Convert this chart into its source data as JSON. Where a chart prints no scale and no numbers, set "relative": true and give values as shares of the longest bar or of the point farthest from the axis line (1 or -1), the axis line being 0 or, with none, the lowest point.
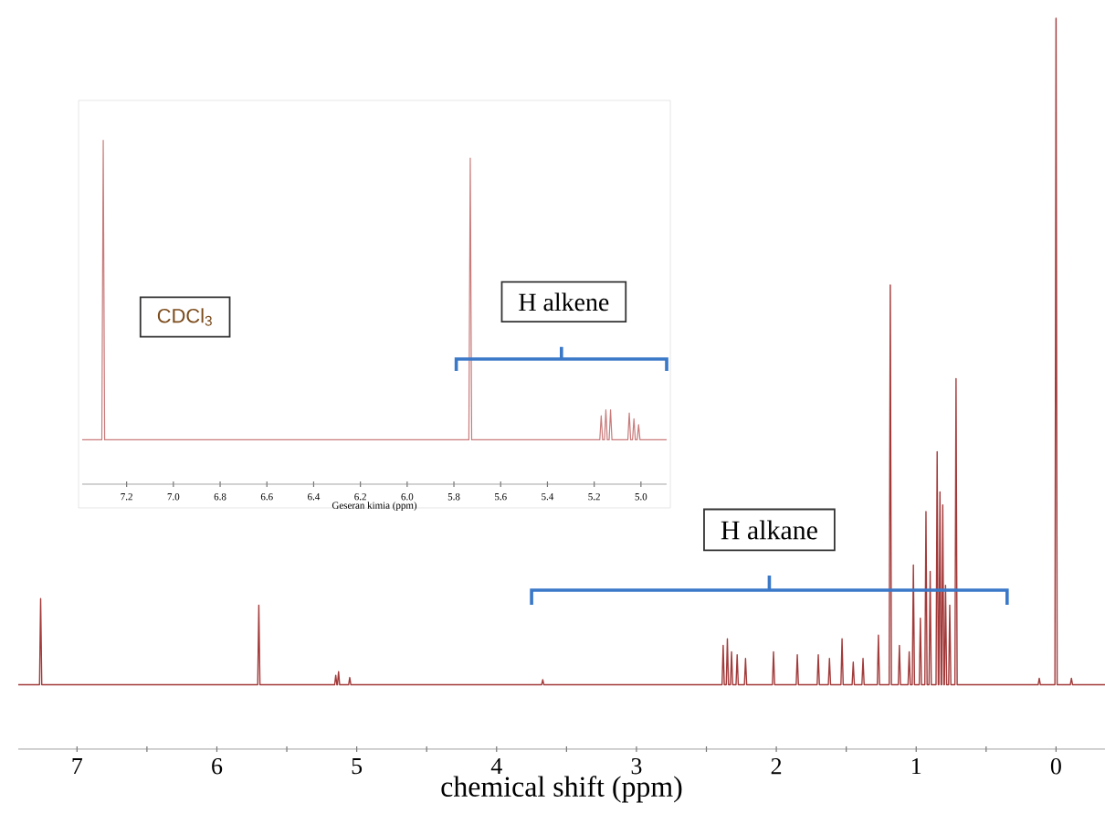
{
  "chart_data": [
    {
      "type": "line",
      "xlabel": "chemical shift (ppm)",
      "relative": true,
      "color": "#a33a3a",
      "xlim": [
        7.42,
        -0.35
      ],
      "xticks": [
        7,
        6,
        5,
        4,
        3,
        2,
        1,
        0
      ],
      "x": [
        7.42,
        7.268,
        7.26,
        7.252,
        5.708,
        5.7,
        5.692,
        5.158,
        5.15,
        5.142,
        5.138,
        5.13,
        5.122,
        5.058,
        5.05,
        5.042,
        3.678,
        3.67,
        3.662,
        2.388,
        2.38,
        2.372,
        2.358,
        2.35,
        2.342,
        2.328,
        2.32,
        2.312,
        2.288,
        2.28,
        2.272,
        2.228,
        2.22,
        2.212,
        2.028,
        2.02,
        2.012,
        1.858,
        1.85,
        1.842,
        1.708,
        1.7,
        1.692,
        1.628,
        1.62,
        1.612,
        1.538,
        1.53,
        1.522,
        1.458,
        1.45,
        1.442,
        1.388,
        1.38,
        1.372,
        1.278,
        1.27,
        1.262,
        1.193,
        1.185,
        1.177,
        1.128,
        1.12,
        1.112,
        1.058,
        1.05,
        1.042,
        1.028,
        1.02,
        1.012,
        0.978,
        0.97,
        0.962,
        0.938,
        0.93,
        0.922,
        0.908,
        0.9,
        0.892,
        0.858,
        0.85,
        0.842,
        0.838,
        0.83,
        0.822,
        0.818,
        0.81,
        0.802,
        0.798,
        0.79,
        0.782,
        0.768,
        0.76,
        0.752,
        0.723,
        0.715,
        0.707,
        0.128,
        0.12,
        0.112,
        0.008,
        0.0,
        -0.008,
        -0.102,
        -0.11,
        -0.118,
        -0.35
      ],
      "values": [
        0.088,
        0.088,
        0.206,
        0.088,
        0.088,
        0.197,
        0.088,
        0.088,
        0.101,
        0.088,
        0.088,
        0.106,
        0.088,
        0.088,
        0.098,
        0.088,
        0.088,
        0.095,
        0.088,
        0.088,
        0.142,
        0.088,
        0.088,
        0.151,
        0.088,
        0.088,
        0.133,
        0.088,
        0.088,
        0.129,
        0.088,
        0.088,
        0.124,
        0.088,
        0.088,
        0.133,
        0.088,
        0.088,
        0.129,
        0.088,
        0.088,
        0.129,
        0.088,
        0.088,
        0.124,
        0.088,
        0.088,
        0.151,
        0.088,
        0.088,
        0.119,
        0.088,
        0.088,
        0.124,
        0.088,
        0.088,
        0.156,
        0.088,
        0.088,
        0.635,
        0.088,
        0.088,
        0.142,
        0.088,
        0.088,
        0.133,
        0.088,
        0.088,
        0.252,
        0.088,
        0.088,
        0.179,
        0.088,
        0.088,
        0.325,
        0.088,
        0.088,
        0.243,
        0.088,
        0.088,
        0.407,
        0.088,
        0.088,
        0.352,
        0.088,
        0.088,
        0.334,
        0.088,
        0.088,
        0.224,
        0.088,
        0.088,
        0.197,
        0.088,
        0.088,
        0.507,
        0.088,
        0.088,
        0.097,
        0.088,
        0.088,
        1,
        0.088,
        0.088,
        0.097,
        0.088,
        0.088
      ],
      "annotations": [
        "H alkane"
      ]
    },
    {
      "type": "line",
      "xlabel": "Geseran kimia (ppm)",
      "relative": true,
      "color": "#c97b7b",
      "xlim": [
        7.39,
        4.89
      ],
      "xticks": [
        {
          "value": 7.2,
          "label": "7.2"
        },
        {
          "value": 7.0,
          "label": "7.0"
        },
        {
          "value": 6.8,
          "label": "6.8"
        },
        {
          "value": 6.6,
          "label": "6.6"
        },
        {
          "value": 6.4,
          "label": "6.4"
        },
        {
          "value": 6.2,
          "label": "6.2"
        },
        {
          "value": 6.0,
          "label": "6.0"
        },
        {
          "value": 5.8,
          "label": "5.8"
        },
        {
          "value": 5.6,
          "label": "5.6"
        },
        {
          "value": 5.4,
          "label": "5.4"
        },
        {
          "value": 5.2,
          "label": "5.2"
        },
        {
          "value": 5.0,
          "label": "5.0"
        }
      ],
      "x": [
        7.39,
        7.306,
        7.3,
        7.294,
        5.736,
        5.73,
        5.724,
        5.176,
        5.17,
        5.164,
        5.156,
        5.15,
        5.144,
        5.136,
        5.13,
        5.124,
        5.056,
        5.05,
        5.044,
        5.036,
        5.03,
        5.024,
        5.016,
        5.01,
        5.004,
        4.89
      ],
      "values": [
        0.129,
        0.129,
        1,
        0.129,
        0.129,
        0.948,
        0.129,
        0.129,
        0.199,
        0.129,
        0.129,
        0.216,
        0.129,
        0.129,
        0.216,
        0.129,
        0.129,
        0.207,
        0.129,
        0.129,
        0.19,
        0.129,
        0.129,
        0.173,
        0.129,
        0.129
      ],
      "annotations": [
        "CDCl$_{3}$",
        "H alkene"
      ]
    }
  ]
}
